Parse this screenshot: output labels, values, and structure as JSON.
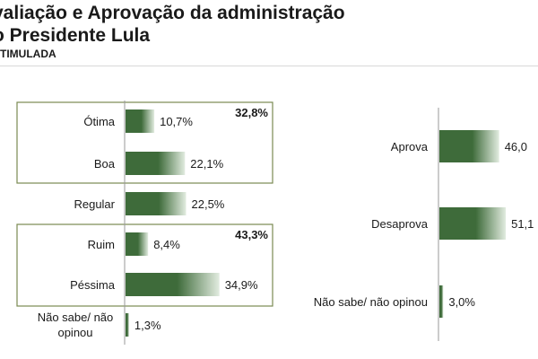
{
  "header": {
    "title_line1": "valiação e Aprovação da administração",
    "title_line2": "o Presidente Lula",
    "subtitle": "STIMULADA"
  },
  "colors": {
    "bar": "#3e6b3a",
    "bar_light": "#e2ece0",
    "box": "#7a8a52"
  },
  "chart_data": [
    {
      "type": "bar",
      "orientation": "horizontal",
      "categories": [
        "Ótima",
        "Boa",
        "Regular",
        "Ruim",
        "Péssima",
        "Não sabe/ não opinou"
      ],
      "values": [
        10.7,
        22.1,
        22.5,
        8.4,
        34.9,
        1.3
      ],
      "value_labels": [
        "10,7%",
        "22,1%",
        "22,5%",
        "8,4%",
        "34,9%",
        "1,3%"
      ],
      "groups": [
        {
          "members": [
            "Ótima",
            "Boa"
          ],
          "total_label": "32,8%"
        },
        {
          "members": [
            "Ruim",
            "Péssima"
          ],
          "total_label": "43,3%"
        }
      ],
      "grid": false
    },
    {
      "type": "bar",
      "orientation": "horizontal",
      "categories": [
        "Aprova",
        "Desaprova",
        "Não sabe/ não opinou"
      ],
      "values": [
        46.0,
        51.1,
        3.0
      ],
      "value_labels": [
        "46,0",
        "51,1",
        "3,0%"
      ],
      "grid": false
    }
  ]
}
